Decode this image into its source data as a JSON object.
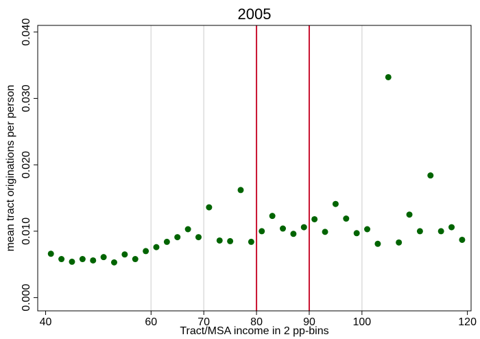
{
  "chart_data": {
    "type": "scatter",
    "title": "2005",
    "x_label": "Tract/MSA income in 2 pp-bins",
    "y_label": "mean tract originations per person",
    "x": [
      41,
      43,
      45,
      47,
      49,
      51,
      53,
      55,
      57,
      59,
      61,
      63,
      65,
      67,
      69,
      71,
      73,
      75,
      77,
      79,
      81,
      83,
      85,
      87,
      89,
      91,
      93,
      95,
      97,
      99,
      101,
      103,
      105,
      107,
      109,
      111,
      113,
      115,
      117,
      119
    ],
    "series": [
      {
        "color": "#006400",
        "values": [
          0.0066,
          0.0058,
          0.0054,
          0.0058,
          0.0056,
          0.0061,
          0.0053,
          0.0065,
          0.0058,
          0.007,
          0.0076,
          0.0084,
          0.0091,
          0.0103,
          0.0091,
          0.0136,
          0.0086,
          0.0085,
          0.0162,
          0.0084,
          0.01,
          0.0123,
          0.0104,
          0.0096,
          0.0106,
          0.0118,
          0.0099,
          0.0141,
          0.0119,
          0.0097,
          0.0103,
          0.0081,
          0.0332,
          0.0083,
          0.0125,
          0.01,
          0.0184,
          0.01,
          0.0106,
          0.0087
        ]
      }
    ],
    "xlim": [
      38.5,
      120.7
    ],
    "ylim": [
      -0.002,
      0.041
    ],
    "xticks": [
      40,
      60,
      70,
      80,
      90,
      100,
      120
    ],
    "yticks": [
      {
        "value": 0,
        "label": "0.000"
      },
      {
        "value": 0.01,
        "label": "0.010"
      },
      {
        "value": 0.02,
        "label": "0.020"
      },
      {
        "value": 0.03,
        "label": "0.030"
      },
      {
        "value": 0.04,
        "label": "0.040"
      }
    ],
    "x_grid": [
      60,
      70,
      100
    ],
    "reference_lines": {
      "x": [
        80,
        90
      ],
      "color": "#c8102e"
    }
  }
}
